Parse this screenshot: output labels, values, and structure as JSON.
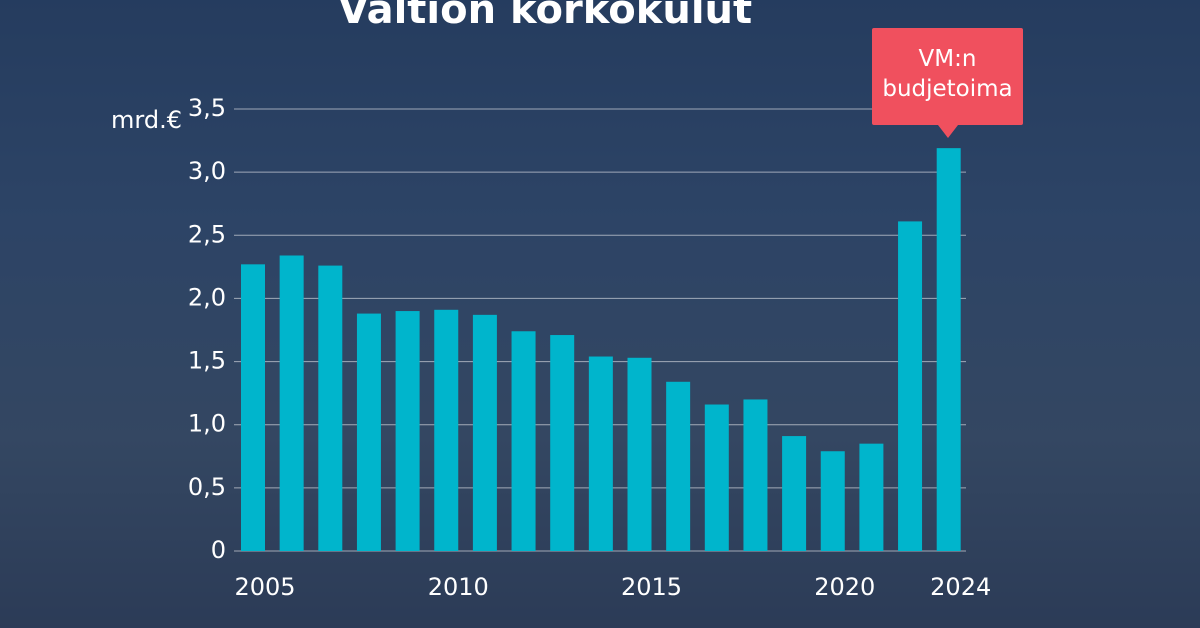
{
  "chart_data": {
    "type": "bar",
    "title": "Valtion korkokulut",
    "y_label": "mrd.€",
    "annotation": "VM:n budjetoima",
    "categories": [
      "2005",
      null,
      null,
      null,
      null,
      "2010",
      null,
      null,
      null,
      null,
      "2015",
      null,
      null,
      null,
      null,
      "2020",
      null,
      null,
      "2024"
    ],
    "values": [
      2.27,
      2.34,
      2.26,
      1.88,
      1.9,
      1.91,
      1.87,
      1.74,
      1.71,
      1.54,
      1.53,
      1.34,
      1.16,
      1.2,
      0.91,
      0.79,
      0.85,
      2.61,
      3.19
    ],
    "color": "#00b5cc",
    "ylim": [
      0,
      3.5
    ],
    "yticks": [
      0,
      {
        "value": 0.5,
        "label": "0,5"
      },
      {
        "value": 1,
        "label": "1,0"
      },
      {
        "value": 1.5,
        "label": "1,5"
      },
      {
        "value": 2,
        "label": "2,0"
      },
      {
        "value": 2.5,
        "label": "2,5"
      },
      {
        "value": 3,
        "label": "3,0"
      },
      {
        "value": 3.5,
        "label": "3,5"
      }
    ],
    "grid": true
  }
}
